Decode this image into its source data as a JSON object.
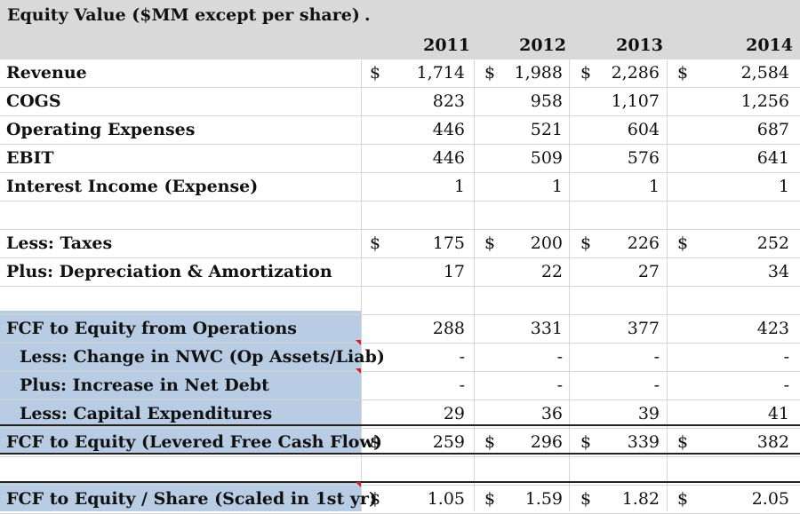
{
  "header": {
    "title": "Equity Value ($MM except per share)",
    "dot": ".",
    "years": [
      "2011",
      "2012",
      "2013",
      "2014"
    ]
  },
  "rows": [
    {
      "label": "Revenue",
      "dollar": true,
      "values": [
        "1,714",
        "1,988",
        "2,286",
        "2,584"
      ]
    },
    {
      "label": "COGS",
      "dollar": false,
      "values": [
        "823",
        "958",
        "1,107",
        "1,256"
      ]
    },
    {
      "label": "Operating Expenses",
      "dollar": false,
      "values": [
        "446",
        "521",
        "604",
        "687"
      ]
    },
    {
      "label": "EBIT",
      "dollar": false,
      "values": [
        "446",
        "509",
        "576",
        "641"
      ]
    },
    {
      "label": "Interest Income (Expense)",
      "dollar": false,
      "values": [
        "1",
        "1",
        "1",
        "1"
      ]
    },
    {
      "label": "",
      "dollar": false,
      "values": [
        "",
        "",
        "",
        ""
      ]
    },
    {
      "label": "Less: Taxes",
      "dollar": true,
      "values": [
        "175",
        "200",
        "226",
        "252"
      ]
    },
    {
      "label": "Plus: Depreciation & Amortization",
      "dollar": false,
      "values": [
        "17",
        "22",
        "27",
        "34"
      ]
    },
    {
      "label": "",
      "dollar": false,
      "values": [
        "",
        "",
        "",
        ""
      ]
    },
    {
      "label": "FCF to Equity from Operations",
      "dollar": false,
      "values": [
        "288",
        "331",
        "377",
        "423"
      ]
    },
    {
      "label": "Less: Change in NWC (Op Assets/Liab)",
      "dollar": false,
      "values": [
        "-",
        "-",
        "-",
        "-"
      ]
    },
    {
      "label": "Plus: Increase in Net Debt",
      "dollar": false,
      "values": [
        "-",
        "-",
        "-",
        "-"
      ]
    },
    {
      "label": "Less: Capital Expenditures",
      "dollar": false,
      "values": [
        "29",
        "36",
        "39",
        "41"
      ]
    },
    {
      "label": "FCF to Equity (Levered Free Cash Flow)",
      "dollar": true,
      "values": [
        "259",
        "296",
        "339",
        "382"
      ]
    },
    {
      "label": "",
      "dollar": false,
      "values": [
        "",
        "",
        "",
        ""
      ]
    },
    {
      "label": "FCF to Equity / Share (Scaled in 1st yr)",
      "dollar": true,
      "values": [
        "1.05",
        "1.59",
        "1.82",
        "2.05"
      ]
    }
  ],
  "currency_symbol": "$",
  "colors": {
    "header_band": "#d9d9d9",
    "highlight": "#b8cce4",
    "comment_marker": "#d82020"
  }
}
